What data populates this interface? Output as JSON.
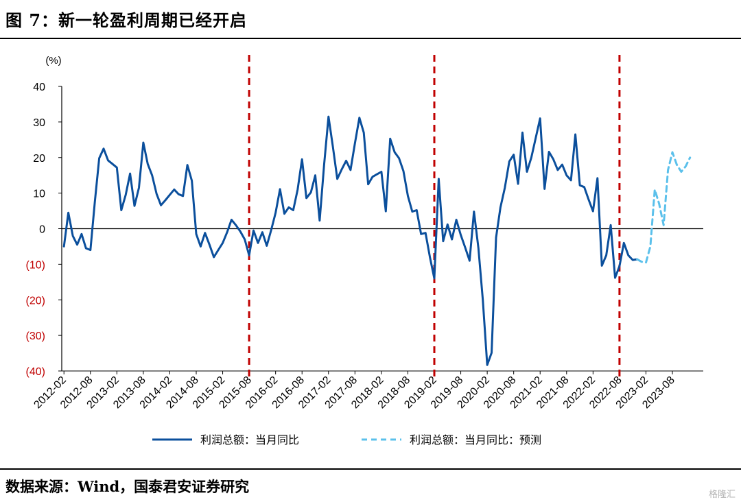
{
  "figure": {
    "title": "图 7：新一轮盈利周期已经开启",
    "source": "数据来源：Wind，国泰君安证券研究",
    "watermark": "格隆汇"
  },
  "chart_data": {
    "type": "line",
    "unit_label": "(%)",
    "ylim": [
      -40,
      40
    ],
    "y_ticks": [
      {
        "value": 40,
        "label": "40"
      },
      {
        "value": 30,
        "label": "30"
      },
      {
        "value": 20,
        "label": "20"
      },
      {
        "value": 10,
        "label": "10"
      },
      {
        "value": 0,
        "label": "0"
      },
      {
        "value": -10,
        "label": "(10)"
      },
      {
        "value": -20,
        "label": "(20)"
      },
      {
        "value": -30,
        "label": "(30)"
      },
      {
        "value": -40,
        "label": "(40)"
      }
    ],
    "x_ticks": [
      "2012-02",
      "2012-08",
      "2013-02",
      "2013-08",
      "2014-02",
      "2014-08",
      "2015-02",
      "2015-08",
      "2016-02",
      "2016-08",
      "2017-02",
      "2017-08",
      "2018-02",
      "2018-08",
      "2019-02",
      "2019-08",
      "2020-02",
      "2020-08",
      "2021-02",
      "2021-08",
      "2022-02",
      "2022-08",
      "2023-02",
      "2023-08"
    ],
    "xlim": [
      "2012-02",
      "2024-03"
    ],
    "grid": false,
    "legend_position": "bottom",
    "vertical_markers": [
      "2015-08",
      "2019-02",
      "2022-08"
    ],
    "colors": {
      "actual": "#0b4f9c",
      "forecast": "#5bc0eb",
      "marker": "#c00000",
      "negative_tick": "#c00000"
    },
    "series": [
      {
        "name": "利润总额：当月同比",
        "style": "solid",
        "points": [
          [
            "2012-02",
            -5
          ],
          [
            "2012-03",
            4.5
          ],
          [
            "2012-04",
            -2
          ],
          [
            "2012-05",
            -4.5
          ],
          [
            "2012-06",
            -1.5
          ],
          [
            "2012-07",
            -5.5
          ],
          [
            "2012-08",
            -6
          ],
          [
            "2012-09",
            7.5
          ],
          [
            "2012-10",
            19.8
          ],
          [
            "2012-11",
            22.5
          ],
          [
            "2012-12",
            19.2
          ],
          [
            "2013-01",
            18.2
          ],
          [
            "2013-02",
            17.2
          ],
          [
            "2013-03",
            5.2
          ],
          [
            "2013-04",
            9.5
          ],
          [
            "2013-05",
            15.5
          ],
          [
            "2013-06",
            6.4
          ],
          [
            "2013-07",
            11.5
          ],
          [
            "2013-08",
            24.2
          ],
          [
            "2013-09",
            18.2
          ],
          [
            "2013-10",
            15.0
          ],
          [
            "2013-11",
            9.8
          ],
          [
            "2013-12",
            6.6
          ],
          [
            "2014-01",
            8.0
          ],
          [
            "2014-02",
            9.5
          ],
          [
            "2014-03",
            11.0
          ],
          [
            "2014-04",
            9.7
          ],
          [
            "2014-05",
            9.2
          ],
          [
            "2014-06",
            17.9
          ],
          [
            "2014-07",
            13.5
          ],
          [
            "2014-08",
            -1.5
          ],
          [
            "2014-09",
            -5
          ],
          [
            "2014-10",
            -1.2
          ],
          [
            "2014-11",
            -4.5
          ],
          [
            "2014-12",
            -8
          ],
          [
            "2015-01",
            -6
          ],
          [
            "2015-02",
            -4
          ],
          [
            "2015-03",
            -1
          ],
          [
            "2015-04",
            2.5
          ],
          [
            "2015-05",
            1.0
          ],
          [
            "2015-06",
            -0.8
          ],
          [
            "2015-07",
            -3
          ],
          [
            "2015-08",
            -7.5
          ],
          [
            "2015-09",
            -0.5
          ],
          [
            "2015-10",
            -4
          ],
          [
            "2015-11",
            -1
          ],
          [
            "2015-12",
            -4.8
          ],
          [
            "2016-01",
            -0.4
          ],
          [
            "2016-02",
            4.5
          ],
          [
            "2016-03",
            11.1
          ],
          [
            "2016-04",
            4.2
          ],
          [
            "2016-05",
            6.0
          ],
          [
            "2016-06",
            5.2
          ],
          [
            "2016-07",
            11.0
          ],
          [
            "2016-08",
            19.5
          ],
          [
            "2016-09",
            8.6
          ],
          [
            "2016-10",
            10.2
          ],
          [
            "2016-11",
            15.0
          ],
          [
            "2016-12",
            2.3
          ],
          [
            "2017-01",
            18.0
          ],
          [
            "2017-02",
            31.5
          ],
          [
            "2017-03",
            23.0
          ],
          [
            "2017-04",
            14.0
          ],
          [
            "2017-05",
            16.7
          ],
          [
            "2017-06",
            19.1
          ],
          [
            "2017-07",
            16.5
          ],
          [
            "2017-08",
            24.0
          ],
          [
            "2017-09",
            31.2
          ],
          [
            "2017-10",
            27.0
          ],
          [
            "2017-11",
            12.5
          ],
          [
            "2017-12",
            14.6
          ],
          [
            "2018-01",
            15.3
          ],
          [
            "2018-02",
            16.0
          ],
          [
            "2018-03",
            4.9
          ],
          [
            "2018-04",
            25.3
          ],
          [
            "2018-05",
            21.5
          ],
          [
            "2018-06",
            19.8
          ],
          [
            "2018-07",
            16.2
          ],
          [
            "2018-08",
            9.2
          ],
          [
            "2018-09",
            4.8
          ],
          [
            "2018-10",
            5.2
          ],
          [
            "2018-11",
            -1.5
          ],
          [
            "2018-12",
            -1.2
          ],
          [
            "2019-01",
            -8
          ],
          [
            "2019-02",
            -14
          ],
          [
            "2019-03",
            14
          ],
          [
            "2019-04",
            -3.5
          ],
          [
            "2019-05",
            1.2
          ],
          [
            "2019-06",
            -3.0
          ],
          [
            "2019-07",
            2.5
          ],
          [
            "2019-08",
            -1.8
          ],
          [
            "2019-09",
            -5.3
          ],
          [
            "2019-10",
            -9.0
          ],
          [
            "2019-11",
            4.8
          ],
          [
            "2019-12",
            -5.5
          ],
          [
            "2020-01",
            -20
          ],
          [
            "2020-02",
            -38.3
          ],
          [
            "2020-03",
            -34.9
          ],
          [
            "2020-04",
            -2.5
          ],
          [
            "2020-05",
            6.0
          ],
          [
            "2020-06",
            11.5
          ],
          [
            "2020-07",
            18.9
          ],
          [
            "2020-08",
            20.8
          ],
          [
            "2020-09",
            12.6
          ],
          [
            "2020-10",
            27.0
          ],
          [
            "2020-11",
            16.0
          ],
          [
            "2020-12",
            20.0
          ],
          [
            "2021-01",
            25.5
          ],
          [
            "2021-02",
            31.0
          ],
          [
            "2021-03",
            11.2
          ],
          [
            "2021-04",
            21.6
          ],
          [
            "2021-05",
            19.5
          ],
          [
            "2021-06",
            16.5
          ],
          [
            "2021-07",
            18.0
          ],
          [
            "2021-08",
            15.0
          ],
          [
            "2021-09",
            13.6
          ],
          [
            "2021-10",
            26.5
          ],
          [
            "2021-11",
            12.2
          ],
          [
            "2021-12",
            11.7
          ],
          [
            "2022-01",
            8.2
          ],
          [
            "2022-02",
            4.9
          ],
          [
            "2022-03",
            14.2
          ],
          [
            "2022-04",
            -10.4
          ],
          [
            "2022-05",
            -7.5
          ],
          [
            "2022-06",
            1.0
          ],
          [
            "2022-07",
            -13.8
          ],
          [
            "2022-08",
            -10.5
          ],
          [
            "2022-09",
            -4
          ],
          [
            "2022-10",
            -7.5
          ],
          [
            "2022-11",
            -8.8
          ],
          [
            "2022-12",
            -8.6
          ]
        ]
      },
      {
        "name": "利润总额：当月同比：预测",
        "style": "dashed",
        "points": [
          [
            "2022-12",
            -8.6
          ],
          [
            "2023-01",
            -9.3
          ],
          [
            "2023-02",
            -9.5
          ],
          [
            "2023-03",
            -5.0
          ],
          [
            "2023-04",
            11.0
          ],
          [
            "2023-05",
            7.0
          ],
          [
            "2023-06",
            1.0
          ],
          [
            "2023-07",
            16.5
          ],
          [
            "2023-08",
            21.5
          ],
          [
            "2023-09",
            18.0
          ],
          [
            "2023-10",
            16.0
          ],
          [
            "2023-11",
            17.5
          ],
          [
            "2023-12",
            20.0
          ]
        ]
      }
    ]
  }
}
